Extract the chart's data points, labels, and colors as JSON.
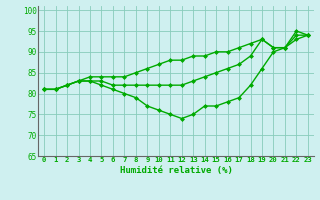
{
  "xlabel": "Humidité relative (%)",
  "bg_color": "#cff0f0",
  "grid_color": "#88ccbb",
  "line_color": "#00aa00",
  "marker": "D",
  "marker_size": 2.0,
  "xlim": [
    -0.5,
    23.5
  ],
  "ylim": [
    65,
    101
  ],
  "xticks": [
    0,
    1,
    2,
    3,
    4,
    5,
    6,
    7,
    8,
    9,
    10,
    11,
    12,
    13,
    14,
    15,
    16,
    17,
    18,
    19,
    20,
    21,
    22,
    23
  ],
  "yticks": [
    65,
    70,
    75,
    80,
    85,
    90,
    95,
    100
  ],
  "line1_x": [
    0,
    1,
    2,
    3,
    4,
    5,
    6,
    7,
    8,
    9,
    10,
    11,
    12,
    13,
    14,
    15,
    16,
    17,
    18,
    19,
    20,
    21,
    22,
    23
  ],
  "line1_y": [
    81,
    81,
    82,
    83,
    84,
    84,
    84,
    84,
    85,
    86,
    87,
    88,
    88,
    89,
    89,
    90,
    90,
    91,
    92,
    93,
    91,
    91,
    93,
    94
  ],
  "line2_x": [
    0,
    1,
    2,
    3,
    4,
    5,
    6,
    7,
    8,
    9,
    10,
    11,
    12,
    13,
    14,
    15,
    16,
    17,
    18,
    19,
    20,
    21,
    22,
    23
  ],
  "line2_y": [
    81,
    81,
    82,
    83,
    83,
    83,
    82,
    82,
    82,
    82,
    82,
    82,
    82,
    83,
    84,
    85,
    86,
    87,
    89,
    93,
    91,
    91,
    94,
    94
  ],
  "line3_x": [
    0,
    1,
    2,
    3,
    4,
    5,
    6,
    7,
    8,
    9,
    10,
    11,
    12,
    13,
    14,
    15,
    16,
    17,
    18,
    19,
    20,
    21,
    22,
    23
  ],
  "line3_y": [
    81,
    81,
    82,
    83,
    83,
    82,
    81,
    80,
    79,
    77,
    76,
    75,
    74,
    75,
    77,
    77,
    78,
    79,
    82,
    86,
    90,
    91,
    95,
    94
  ]
}
